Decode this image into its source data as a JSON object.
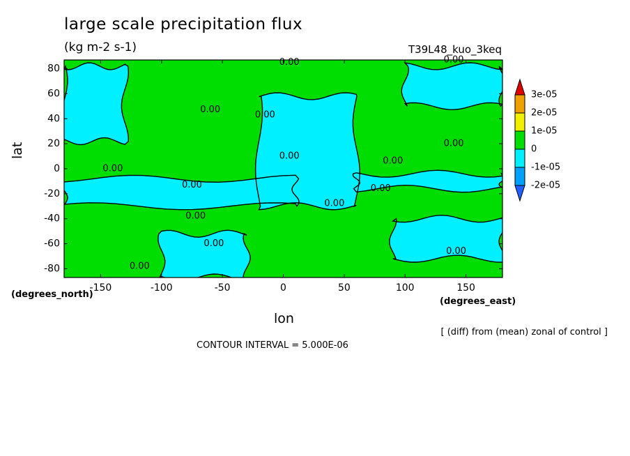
{
  "header": {
    "title": "large scale precipitation flux",
    "units": "(kg m-2 s-1)",
    "run": "T39L48_kuo_3keq"
  },
  "footer": {
    "note": "[ (diff) from (mean) zonal of control ]",
    "contour_interval": "CONTOUR INTERVAL = 5.000E-06"
  },
  "colors": {
    "negative_small": "#00f0ff",
    "near_zero": "#00dd00",
    "positive_small": "#f0f000",
    "positive_mid": "#f0a000",
    "positive_high": "#e00000",
    "negative_mid": "#00a0ff",
    "negative_low": "#2060ff"
  },
  "chart_data": {
    "type": "heatmap",
    "title": "large scale precipitation flux",
    "subtitle": "(kg m-2 s-1)",
    "xlabel": "lon",
    "ylabel": "lat",
    "x_units": "(degrees_east)",
    "y_units": "(degrees_north)",
    "xlim": [
      -180,
      180
    ],
    "ylim": [
      -87,
      87
    ],
    "x_ticks": [
      -150,
      -100,
      -50,
      0,
      50,
      100,
      150
    ],
    "x_tick_labels": [
      "-150",
      "-100",
      "-50",
      "0",
      "50",
      "100",
      "150"
    ],
    "y_ticks": [
      -80,
      -60,
      -40,
      -20,
      0,
      20,
      40,
      60,
      80
    ],
    "y_tick_labels": [
      "-80",
      "-60",
      "-40",
      "-20",
      "0",
      "20",
      "40",
      "60",
      "80"
    ],
    "colorbar": {
      "levels": [
        "3e-05",
        "2e-05",
        "1e-05",
        "0",
        "-1e-05",
        "-2e-05"
      ],
      "colors": [
        "#e00000",
        "#f0a000",
        "#f0f000",
        "#00dd00",
        "#00f0ff",
        "#00a0ff",
        "#2060ff"
      ]
    },
    "contour_labels": [
      {
        "text": "0.00",
        "lon": -140,
        "lat": 0
      },
      {
        "text": "0.00",
        "lon": -75,
        "lat": -13
      },
      {
        "text": "0.00",
        "lon": -72,
        "lat": -38
      },
      {
        "text": "0.00",
        "lon": -57,
        "lat": -60
      },
      {
        "text": "0.00",
        "lon": -118,
        "lat": -78
      },
      {
        "text": "0.00",
        "lon": -60,
        "lat": 47
      },
      {
        "text": "0.00",
        "lon": -15,
        "lat": 43
      },
      {
        "text": "0.00",
        "lon": 5,
        "lat": 85
      },
      {
        "text": "0.00",
        "lon": 140,
        "lat": 87
      },
      {
        "text": "0.00",
        "lon": 5,
        "lat": 10
      },
      {
        "text": "0.00",
        "lon": 90,
        "lat": 6
      },
      {
        "text": "0.00",
        "lon": 140,
        "lat": 20
      },
      {
        "text": "0.00",
        "lon": 80,
        "lat": -16
      },
      {
        "text": "0.00",
        "lon": 42,
        "lat": -28
      },
      {
        "text": "0.00",
        "lon": 142,
        "lat": -66
      }
    ],
    "regions": [
      {
        "value_class": "near_zero",
        "lon_range": [
          -180,
          180
        ],
        "lat_range": [
          -87,
          87
        ]
      },
      {
        "value_class": "negative_small",
        "lon_range": [
          -180,
          -130
        ],
        "lat_range": [
          22,
          82
        ]
      },
      {
        "value_class": "negative_small",
        "lon_range": [
          -180,
          10
        ],
        "lat_range": [
          -30,
          -8
        ]
      },
      {
        "value_class": "negative_small",
        "lon_range": [
          -20,
          60
        ],
        "lat_range": [
          -30,
          58
        ]
      },
      {
        "value_class": "negative_small",
        "lon_range": [
          -100,
          -30
        ],
        "lat_range": [
          -87,
          -52
        ]
      },
      {
        "value_class": "negative_small",
        "lon_range": [
          100,
          180
        ],
        "lat_range": [
          50,
          82
        ]
      },
      {
        "value_class": "negative_small",
        "lon_range": [
          60,
          180
        ],
        "lat_range": [
          -16,
          -4
        ]
      },
      {
        "value_class": "negative_small",
        "lon_range": [
          90,
          180
        ],
        "lat_range": [
          -72,
          -40
        ]
      }
    ]
  }
}
